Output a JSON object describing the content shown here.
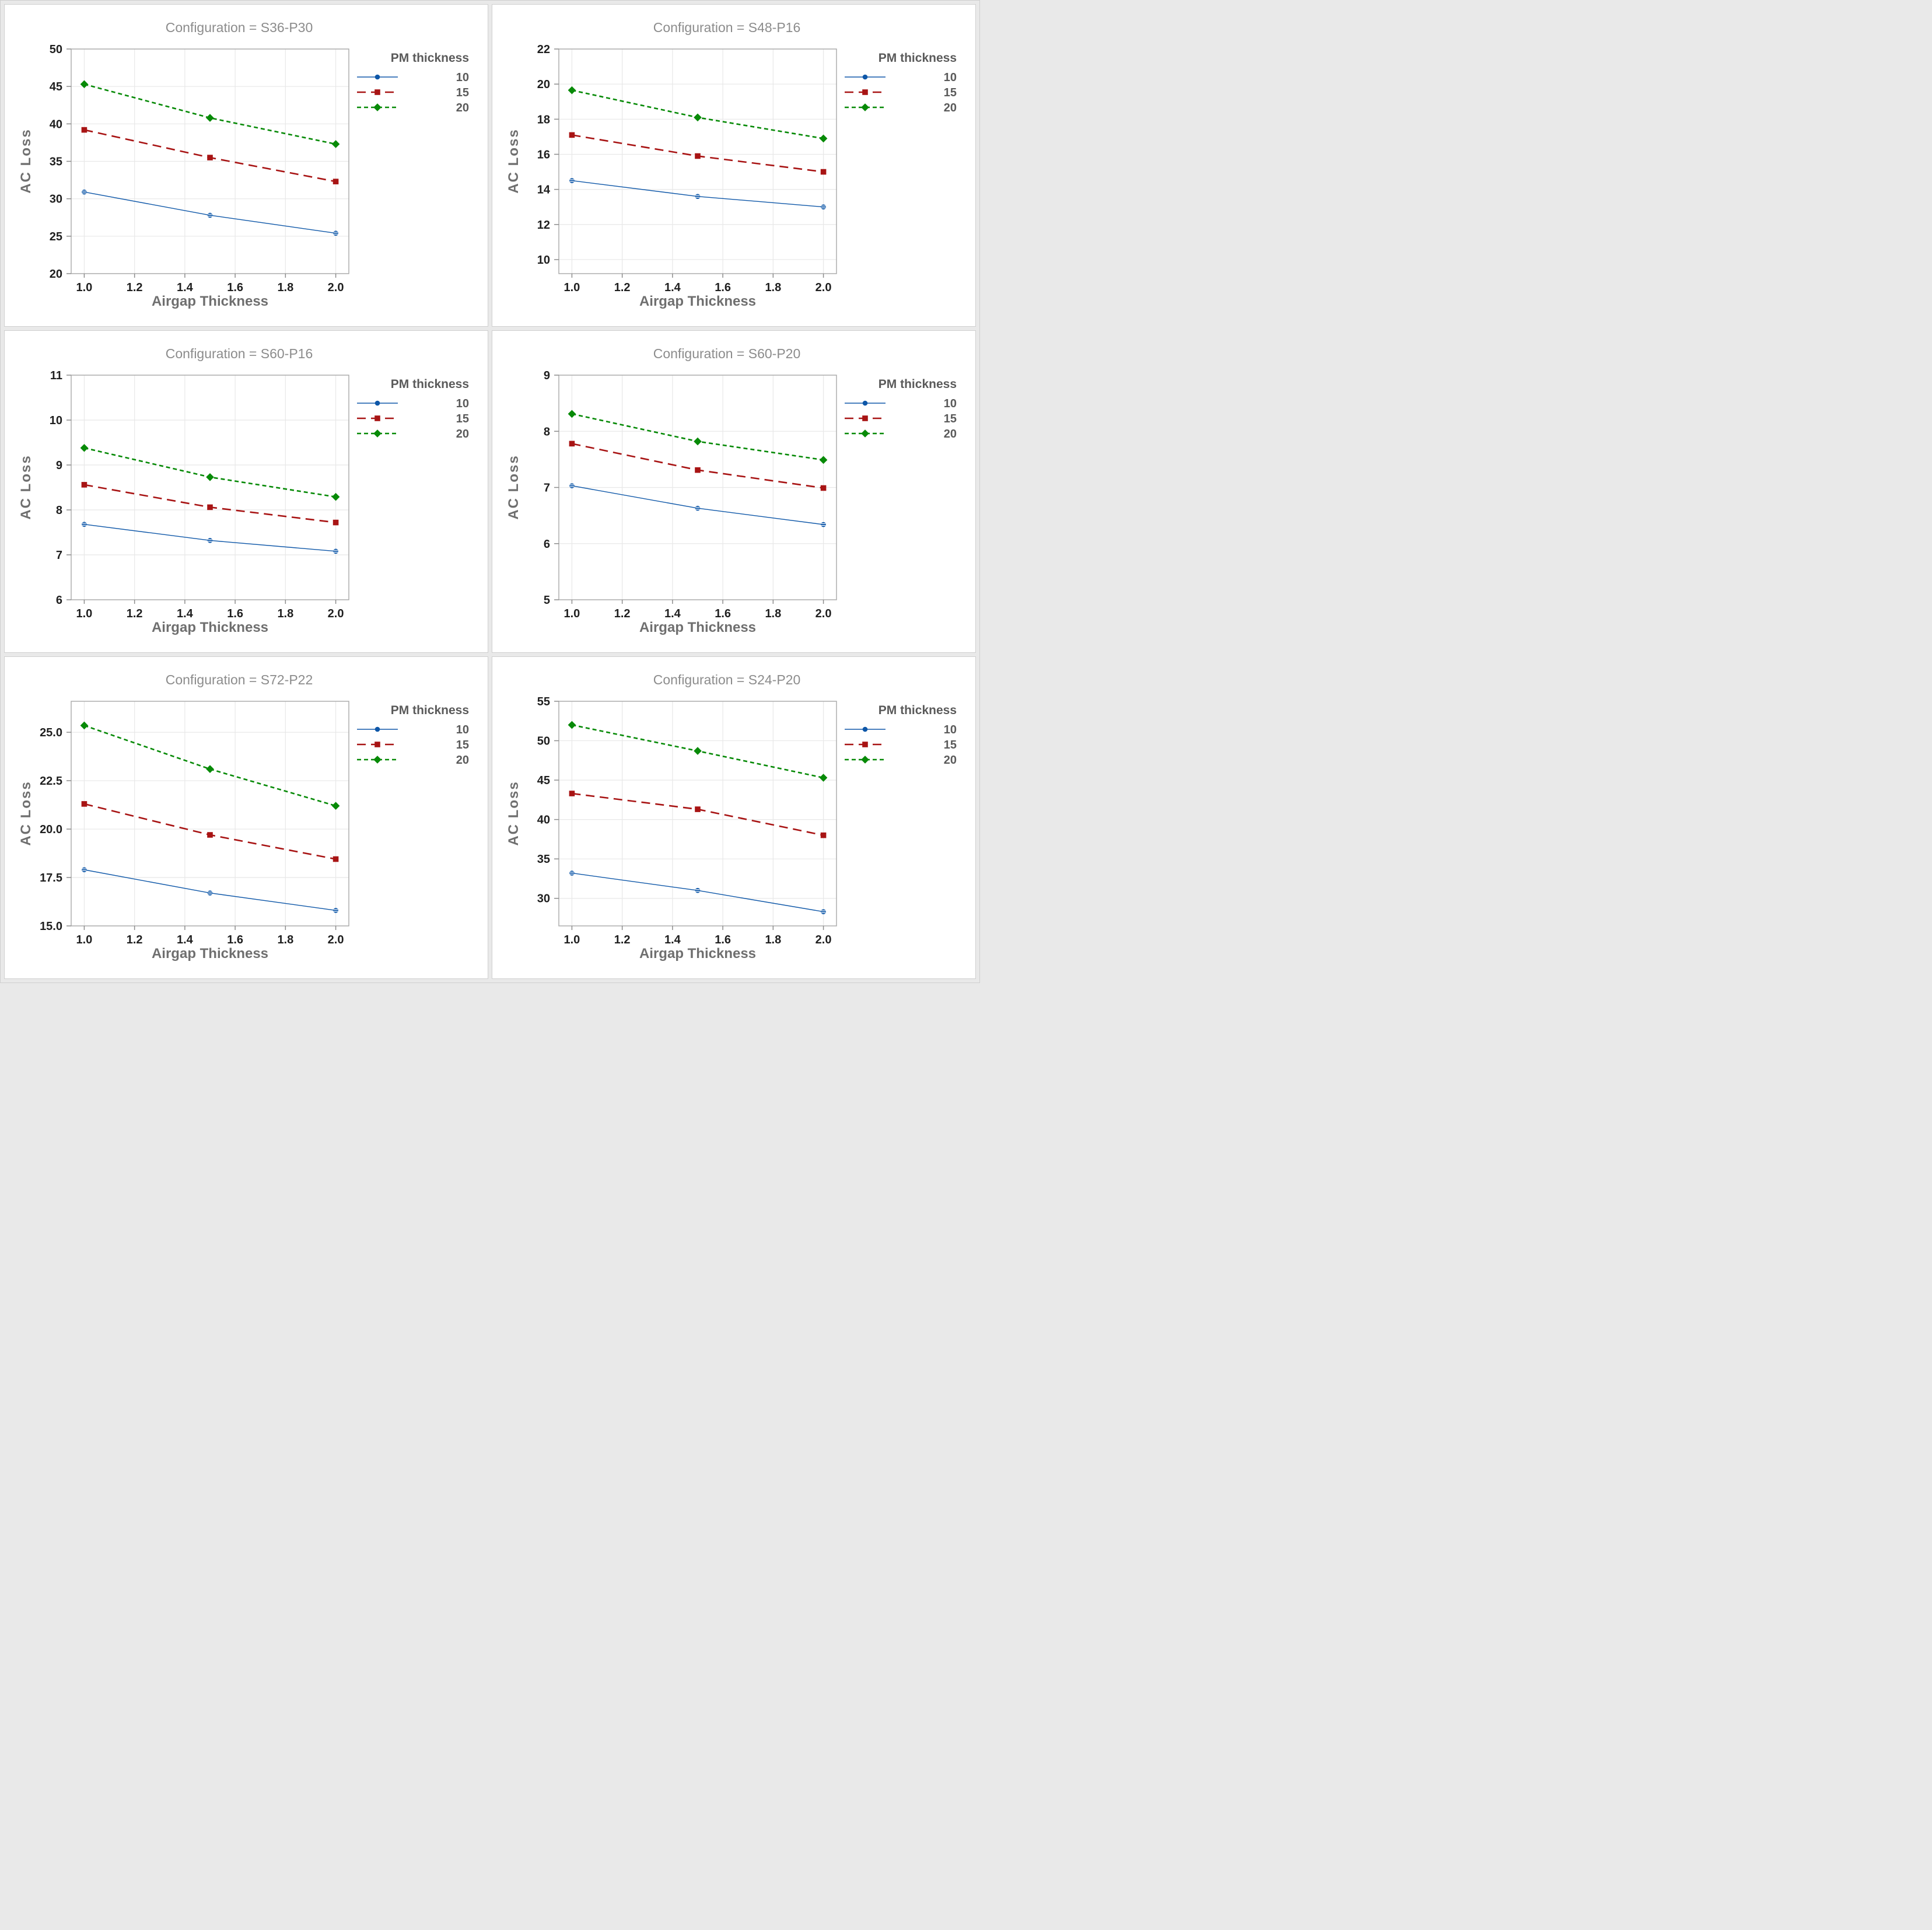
{
  "figure": {
    "xlabel": "Airgap Thickness",
    "ylabel": "AC Loss",
    "colors": {
      "series_blue": "#0E57A8",
      "series_red": "#A81414",
      "series_green": "#078A07",
      "title_gray": "#8C8C8C",
      "axis_label_gray": "#6F6F6F",
      "tick_black": "#1F1F1F",
      "legend_gray": "#5A5A5A",
      "gridline": "#E8E8E8",
      "frame": "#A8A8A8"
    }
  },
  "legend": {
    "title": "PM thickness",
    "position": "right",
    "entries": [
      {
        "label": "10",
        "color": "#0E57A8",
        "line_style": "solid",
        "marker": "circle"
      },
      {
        "label": "15",
        "color": "#A81414",
        "line_style": "long-dash",
        "marker": "square"
      },
      {
        "label": "20",
        "color": "#078A07",
        "line_style": "dash",
        "marker": "diamond"
      }
    ]
  },
  "chart_data": [
    {
      "type": "line",
      "title": "Configuration = S36-P30",
      "xlabel": "Airgap Thickness",
      "ylabel": "AC Loss",
      "x": [
        1.0,
        1.5,
        2.0
      ],
      "xticks": [
        1.0,
        1.2,
        1.4,
        1.6,
        1.8,
        2.0
      ],
      "xlim": [
        0.948,
        2.052
      ],
      "yticks": [
        20,
        25,
        30,
        35,
        40,
        45,
        50
      ],
      "ylim": [
        20,
        50
      ],
      "ytick_decimals": 0,
      "grid": true,
      "legend_title": "PM thickness",
      "series": [
        {
          "name": "10",
          "values": [
            30.9,
            27.8,
            25.4
          ]
        },
        {
          "name": "15",
          "values": [
            39.2,
            35.5,
            32.3
          ]
        },
        {
          "name": "20",
          "values": [
            45.3,
            40.8,
            37.3
          ]
        }
      ]
    },
    {
      "type": "line",
      "title": "Configuration = S48-P16",
      "xlabel": "Airgap Thickness",
      "ylabel": "AC Loss",
      "x": [
        1.0,
        1.5,
        2.0
      ],
      "xticks": [
        1.0,
        1.2,
        1.4,
        1.6,
        1.8,
        2.0
      ],
      "xlim": [
        0.948,
        2.052
      ],
      "yticks": [
        10,
        12,
        14,
        16,
        18,
        20,
        22
      ],
      "ylim": [
        9.2,
        22
      ],
      "ytick_decimals": 0,
      "grid": true,
      "legend_title": "PM thickness",
      "series": [
        {
          "name": "10",
          "values": [
            14.5,
            13.6,
            13.0
          ]
        },
        {
          "name": "15",
          "values": [
            17.1,
            15.9,
            15.0
          ]
        },
        {
          "name": "20",
          "values": [
            19.65,
            18.1,
            16.9
          ]
        }
      ]
    },
    {
      "type": "line",
      "title": "Configuration = S60-P16",
      "xlabel": "Airgap Thickness",
      "ylabel": "AC Loss",
      "x": [
        1.0,
        1.5,
        2.0
      ],
      "xticks": [
        1.0,
        1.2,
        1.4,
        1.6,
        1.8,
        2.0
      ],
      "xlim": [
        0.948,
        2.052
      ],
      "yticks": [
        6,
        7,
        8,
        9,
        10,
        11
      ],
      "ylim": [
        6,
        11
      ],
      "ytick_decimals": 0,
      "grid": true,
      "legend_title": "PM thickness",
      "series": [
        {
          "name": "10",
          "values": [
            7.68,
            7.32,
            7.08
          ]
        },
        {
          "name": "15",
          "values": [
            8.56,
            8.06,
            7.72
          ]
        },
        {
          "name": "20",
          "values": [
            9.38,
            8.73,
            8.29
          ]
        }
      ]
    },
    {
      "type": "line",
      "title": "Configuration = S60-P20",
      "xlabel": "Airgap Thickness",
      "ylabel": "AC Loss",
      "x": [
        1.0,
        1.5,
        2.0
      ],
      "xticks": [
        1.0,
        1.2,
        1.4,
        1.6,
        1.8,
        2.0
      ],
      "xlim": [
        0.948,
        2.052
      ],
      "yticks": [
        5,
        6,
        7,
        8,
        9
      ],
      "ylim": [
        5,
        9
      ],
      "ytick_decimals": 0,
      "grid": true,
      "legend_title": "PM thickness",
      "series": [
        {
          "name": "10",
          "values": [
            7.03,
            6.63,
            6.34
          ]
        },
        {
          "name": "15",
          "values": [
            7.78,
            7.31,
            6.99
          ]
        },
        {
          "name": "20",
          "values": [
            8.31,
            7.82,
            7.49
          ]
        }
      ]
    },
    {
      "type": "line",
      "title": "Configuration = S72-P22",
      "xlabel": "Airgap Thickness",
      "ylabel": "AC Loss",
      "x": [
        1.0,
        1.5,
        2.0
      ],
      "xticks": [
        1.0,
        1.2,
        1.4,
        1.6,
        1.8,
        2.0
      ],
      "xlim": [
        0.948,
        2.052
      ],
      "yticks": [
        15,
        17.5,
        20,
        22.5,
        25
      ],
      "ylim": [
        15,
        26.6
      ],
      "ytick_decimals": 1,
      "grid": true,
      "legend_title": "PM thickness",
      "series": [
        {
          "name": "10",
          "values": [
            17.9,
            16.7,
            15.8
          ]
        },
        {
          "name": "15",
          "values": [
            21.3,
            19.7,
            18.45
          ]
        },
        {
          "name": "20",
          "values": [
            25.35,
            23.1,
            21.2
          ]
        }
      ]
    },
    {
      "type": "line",
      "title": "Configuration = S24-P20",
      "xlabel": "Airgap Thickness",
      "ylabel": "AC Loss",
      "x": [
        1.0,
        1.5,
        2.0
      ],
      "xticks": [
        1.0,
        1.2,
        1.4,
        1.6,
        1.8,
        2.0
      ],
      "xlim": [
        0.948,
        2.052
      ],
      "yticks": [
        30,
        35,
        40,
        45,
        50,
        55
      ],
      "ylim": [
        26.5,
        55
      ],
      "ytick_decimals": 0,
      "grid": true,
      "legend_title": "PM thickness",
      "series": [
        {
          "name": "10",
          "values": [
            33.2,
            31.0,
            28.3
          ]
        },
        {
          "name": "15",
          "values": [
            43.3,
            41.3,
            38.0
          ]
        },
        {
          "name": "20",
          "values": [
            52.0,
            48.7,
            45.3
          ]
        }
      ]
    }
  ]
}
